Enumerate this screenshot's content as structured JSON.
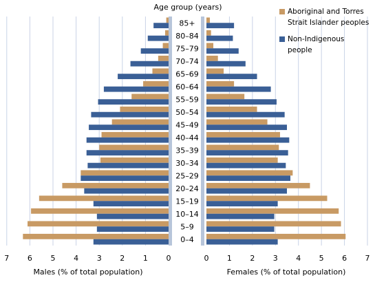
{
  "chart_data": {
    "type": "bar",
    "orientation": "horizontal",
    "layout": "population-pyramid",
    "title": "Age group (years)",
    "categories": [
      "0–4",
      "5–9",
      "10–14",
      "15–19",
      "20–24",
      "25–29",
      "30–34",
      "35–39",
      "40–44",
      "45–49",
      "50–54",
      "55–59",
      "60–64",
      "65–69",
      "70–74",
      "75–79",
      "80–84",
      "85+"
    ],
    "males": {
      "xlabel": "Males (% of total population)",
      "xlim": [
        0,
        7
      ],
      "ticks": [
        "7",
        "6",
        "5",
        "4",
        "3",
        "2",
        "1",
        "0"
      ],
      "series": [
        {
          "name": "Aboriginal and Torres Strait Islander peoples",
          "color": "#c89a64",
          "values": [
            6.3,
            6.1,
            5.95,
            5.6,
            4.6,
            3.8,
            2.95,
            3.0,
            2.9,
            2.45,
            2.1,
            1.6,
            1.1,
            0.7,
            0.45,
            0.25,
            0.15,
            0.1
          ]
        },
        {
          "name": "Non-Indigenous people",
          "color": "#3a5f96",
          "values": [
            3.25,
            3.1,
            3.1,
            3.25,
            3.65,
            3.8,
            3.5,
            3.55,
            3.55,
            3.45,
            3.35,
            3.05,
            2.8,
            2.2,
            1.65,
            1.2,
            0.9,
            0.65
          ]
        }
      ]
    },
    "females": {
      "xlabel": "Females (% of total population)",
      "xlim": [
        0,
        7
      ],
      "ticks": [
        "0",
        "1",
        "2",
        "3",
        "4",
        "5",
        "6",
        "7"
      ],
      "series": [
        {
          "name": "Aboriginal and Torres Strait Islander peoples",
          "color": "#c89a64",
          "values": [
            6.05,
            5.85,
            5.75,
            5.25,
            4.5,
            3.75,
            3.1,
            3.15,
            3.2,
            2.65,
            2.2,
            1.65,
            1.2,
            0.75,
            0.5,
            0.3,
            0.2,
            0.15
          ]
        },
        {
          "name": "Non-Indigenous people",
          "color": "#3a5f96",
          "values": [
            3.1,
            2.95,
            2.95,
            3.1,
            3.5,
            3.65,
            3.45,
            3.55,
            3.6,
            3.5,
            3.4,
            3.05,
            2.8,
            2.2,
            1.7,
            1.4,
            1.15,
            1.2
          ]
        }
      ]
    },
    "legend": {
      "position": "top-right",
      "entries": [
        {
          "label_lines": [
            "Aboriginal and Torres",
            "Strait Islander peoples"
          ],
          "color": "#c89a64"
        },
        {
          "label_lines": [
            "Non-Indigenous",
            "people"
          ],
          "color": "#3a5f96"
        }
      ]
    },
    "grid": {
      "vertical": true,
      "color": "#c8d2e6"
    },
    "center_column_color": "#b7c5da"
  }
}
